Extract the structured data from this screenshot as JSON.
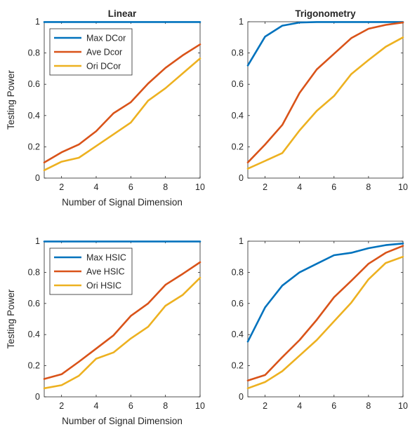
{
  "figure": {
    "ylabel": "Testing Power",
    "xlabel": "Number of Signal Dimension"
  },
  "colors": {
    "max": "#0072BD",
    "ave": "#D95319",
    "ori": "#EDB120"
  },
  "chart_data": [
    {
      "type": "line",
      "title": "Linear",
      "xlabel": "Number of Signal Dimension",
      "ylabel": "Testing Power",
      "x": [
        1,
        2,
        3,
        4,
        5,
        6,
        7,
        8,
        9,
        10
      ],
      "xlim": [
        1,
        10
      ],
      "ylim": [
        0,
        1
      ],
      "xticks": [
        "2",
        "4",
        "6",
        "8",
        "10"
      ],
      "yticks": [
        "0",
        "0.2",
        "0.4",
        "0.6",
        "0.8",
        "1"
      ],
      "legend": "top-left",
      "series": [
        {
          "name": "Max DCor",
          "color": "#0072BD",
          "values": [
            1,
            1,
            1,
            1,
            1,
            1,
            1,
            1,
            1,
            1
          ]
        },
        {
          "name": "Ave Dcor",
          "color": "#D95319",
          "values": [
            0.1,
            0.165,
            0.215,
            0.3,
            0.415,
            0.485,
            0.605,
            0.705,
            0.785,
            0.855
          ]
        },
        {
          "name": "Ori DCor",
          "color": "#EDB120",
          "values": [
            0.05,
            0.105,
            0.13,
            0.205,
            0.28,
            0.355,
            0.495,
            0.575,
            0.67,
            0.765
          ]
        }
      ]
    },
    {
      "type": "line",
      "title": "Trigonometry",
      "xlabel": "",
      "ylabel": "",
      "x": [
        1,
        2,
        3,
        4,
        5,
        6,
        7,
        8,
        9,
        10
      ],
      "xlim": [
        1,
        10
      ],
      "ylim": [
        0,
        1
      ],
      "xticks": [
        "2",
        "4",
        "6",
        "8",
        "10"
      ],
      "yticks": [
        "0",
        "0.2",
        "0.4",
        "0.6",
        "0.8",
        "1"
      ],
      "legend": "",
      "series": [
        {
          "color": "#0072BD",
          "values": [
            0.72,
            0.905,
            0.975,
            0.995,
            1,
            1,
            1,
            1,
            1,
            1
          ]
        },
        {
          "color": "#D95319",
          "values": [
            0.1,
            0.215,
            0.34,
            0.545,
            0.695,
            0.795,
            0.895,
            0.955,
            0.98,
            0.995
          ]
        },
        {
          "color": "#EDB120",
          "values": [
            0.06,
            0.11,
            0.16,
            0.305,
            0.43,
            0.525,
            0.665,
            0.755,
            0.84,
            0.9
          ]
        }
      ]
    },
    {
      "type": "line",
      "title": "",
      "xlabel": "Number of Signal Dimension",
      "ylabel": "Testing Power",
      "x": [
        1,
        2,
        3,
        4,
        5,
        6,
        7,
        8,
        9,
        10
      ],
      "xlim": [
        1,
        10
      ],
      "ylim": [
        0,
        1
      ],
      "xticks": [
        "2",
        "4",
        "6",
        "8",
        "10"
      ],
      "yticks": [
        "0",
        "0.2",
        "0.4",
        "0.6",
        "0.8",
        "1"
      ],
      "legend": "top-left",
      "series": [
        {
          "name": "Max HSIC",
          "color": "#0072BD",
          "values": [
            1,
            1,
            1,
            1,
            1,
            1,
            1,
            1,
            1,
            1
          ]
        },
        {
          "name": "Ave HSIC",
          "color": "#D95319",
          "values": [
            0.115,
            0.145,
            0.225,
            0.31,
            0.395,
            0.52,
            0.6,
            0.72,
            0.79,
            0.865
          ]
        },
        {
          "name": "Ori HSIC",
          "color": "#EDB120",
          "values": [
            0.055,
            0.075,
            0.135,
            0.245,
            0.285,
            0.375,
            0.45,
            0.585,
            0.655,
            0.765
          ]
        }
      ]
    },
    {
      "type": "line",
      "title": "",
      "xlabel": "",
      "ylabel": "",
      "x": [
        1,
        2,
        3,
        4,
        5,
        6,
        7,
        8,
        9,
        10
      ],
      "xlim": [
        1,
        10
      ],
      "ylim": [
        0,
        1
      ],
      "xticks": [
        "2",
        "4",
        "6",
        "8",
        "10"
      ],
      "yticks": [
        "0",
        "0.2",
        "0.4",
        "0.6",
        "0.8",
        "1"
      ],
      "legend": "",
      "series": [
        {
          "color": "#0072BD",
          "values": [
            0.355,
            0.575,
            0.715,
            0.8,
            0.855,
            0.91,
            0.925,
            0.955,
            0.975,
            0.985
          ]
        },
        {
          "color": "#D95319",
          "values": [
            0.105,
            0.14,
            0.255,
            0.365,
            0.495,
            0.64,
            0.745,
            0.855,
            0.925,
            0.97
          ]
        },
        {
          "color": "#EDB120",
          "values": [
            0.055,
            0.095,
            0.165,
            0.265,
            0.365,
            0.485,
            0.605,
            0.755,
            0.86,
            0.9
          ]
        }
      ]
    }
  ]
}
